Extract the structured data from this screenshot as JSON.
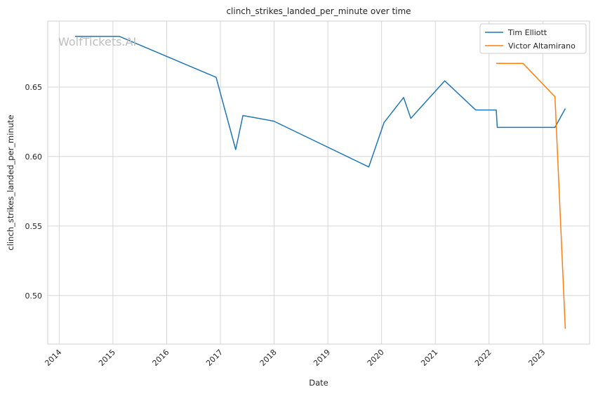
{
  "chart_data": {
    "type": "line",
    "title": "clinch_strikes_landed_per_minute over time",
    "xlabel": "Date",
    "ylabel": "clinch_strikes_landed_per_minute",
    "watermark": "WolfTickets.AI",
    "x_ticks": [
      "2014",
      "2015",
      "2016",
      "2017",
      "2018",
      "2019",
      "2020",
      "2021",
      "2022",
      "2023"
    ],
    "y_ticks": [
      "0.50",
      "0.55",
      "0.60",
      "0.65"
    ],
    "xlim": [
      "2013-10-15",
      "2023-11-15"
    ],
    "ylim": [
      0.465,
      0.6975
    ],
    "grid": true,
    "legend_position": "top-right",
    "series": [
      {
        "name": "Tim Elliott",
        "color": "#1f77b4",
        "x": [
          "2014-04-19",
          "2015-02-14",
          "2016-12-03",
          "2017-04-15",
          "2017-06-03",
          "2017-12-30",
          "2019-10-06",
          "2020-01-18",
          "2020-05-30",
          "2020-07-18",
          "2021-03-06",
          "2021-10-02",
          "2022-02-19",
          "2022-02-26",
          "2023-03-25",
          "2023-06-03"
        ],
        "values": [
          0.6865,
          0.6865,
          0.657,
          0.605,
          0.6295,
          0.6255,
          0.5925,
          0.6245,
          0.6425,
          0.6275,
          0.6545,
          0.6335,
          0.6335,
          0.621,
          0.621,
          0.6345
        ]
      },
      {
        "name": "Victor Altamirano",
        "color": "#ff7f0e",
        "x": [
          "2022-02-19",
          "2022-08-20",
          "2023-03-25",
          "2023-06-03"
        ],
        "values": [
          0.667,
          0.667,
          0.643,
          0.476
        ]
      }
    ]
  }
}
